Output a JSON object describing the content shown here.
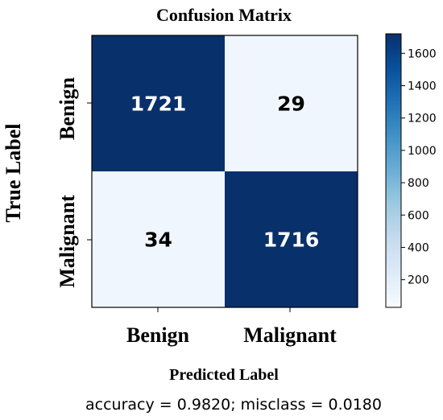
{
  "chart_data": {
    "type": "heatmap",
    "title": "Confusion Matrix",
    "xlabel": "Predicted Label",
    "ylabel": "True Label",
    "x_categories": [
      "Benign",
      "Malignant"
    ],
    "y_categories": [
      "Benign",
      "Malignant"
    ],
    "values": [
      [
        1721,
        29
      ],
      [
        34,
        1716
      ]
    ],
    "colormap": "Blues",
    "colorbar": {
      "ticks": [
        200,
        400,
        600,
        800,
        1000,
        1200,
        1400,
        1600
      ],
      "range": [
        29,
        1721
      ]
    },
    "footer": "accuracy = 0.9820; misclass = 0.0180",
    "colors": {
      "dark_cell": "#08306b",
      "mid_cell": "#0a56a5",
      "light_cell": "#f0f6fd",
      "pale_cell": "#e4eefa",
      "text_dark": "#000000",
      "text_light": "#ffffff"
    }
  }
}
